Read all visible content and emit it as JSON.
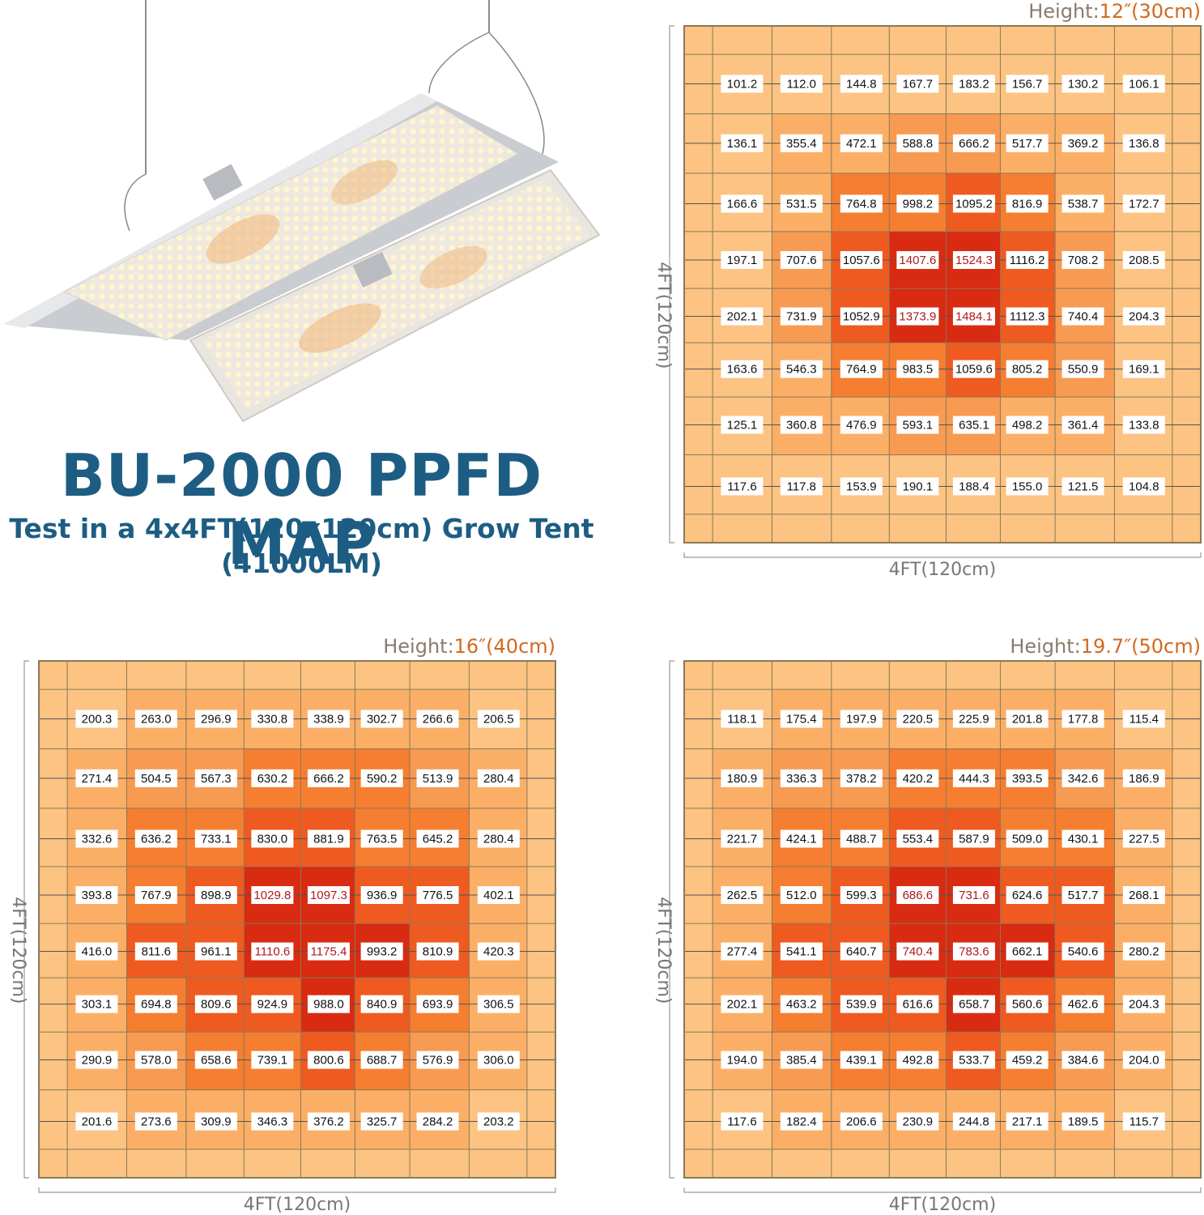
{
  "title": "BU-2000 PPFD MAP",
  "subtitle_line1": "Test in a 4x4FT(120x120cm) Grow Tent",
  "subtitle_line2": "(41000LM)",
  "colors": {
    "title": "#1d5d83",
    "height_label": "#8a7b6e",
    "height_value": "#d2691e",
    "level1": "#fcc382",
    "level2": "#fbaf66",
    "level3": "#f79a52",
    "level4": "#f57e31",
    "level5": "#ef5a20",
    "level6": "#d82b12",
    "peak_text": "#b0191b"
  },
  "chart_data": [
    {
      "type": "heatmap",
      "height_label": "Height:",
      "height_value": "12″(30cm)",
      "xlabel": "4FT(120cm)",
      "ylabel": "4FT(120cm)",
      "values": [
        [
          101.2,
          112.0,
          144.8,
          167.7,
          183.2,
          156.7,
          130.2,
          106.1
        ],
        [
          136.1,
          355.4,
          472.1,
          588.8,
          666.2,
          517.7,
          369.2,
          136.8
        ],
        [
          166.6,
          531.5,
          764.8,
          998.2,
          1095.2,
          816.9,
          538.7,
          172.7
        ],
        [
          197.1,
          707.6,
          1057.6,
          1407.6,
          1524.3,
          1116.2,
          708.2,
          208.5
        ],
        [
          202.1,
          731.9,
          1052.9,
          1373.9,
          1484.1,
          1112.3,
          740.4,
          204.3
        ],
        [
          163.6,
          546.3,
          764.9,
          983.5,
          1059.6,
          805.2,
          550.9,
          169.1
        ],
        [
          125.1,
          360.8,
          476.9,
          593.1,
          635.1,
          498.2,
          361.4,
          133.8
        ],
        [
          117.6,
          117.8,
          153.9,
          190.1,
          188.4,
          155.0,
          121.5,
          104.8
        ]
      ],
      "highlight": [
        [
          3,
          3
        ],
        [
          3,
          4
        ],
        [
          4,
          3
        ],
        [
          4,
          4
        ]
      ]
    },
    {
      "type": "heatmap",
      "height_label": "Height:",
      "height_value": "16″(40cm)",
      "xlabel": "4FT(120cm)",
      "ylabel": "4FT(120cm)",
      "values": [
        [
          200.3,
          263.0,
          296.9,
          330.8,
          338.9,
          302.7,
          266.6,
          206.5
        ],
        [
          271.4,
          504.5,
          567.3,
          630.2,
          666.2,
          590.2,
          513.9,
          280.4
        ],
        [
          332.6,
          636.2,
          733.1,
          830.0,
          881.9,
          763.5,
          645.2,
          280.4
        ],
        [
          393.8,
          767.9,
          898.9,
          1029.8,
          1097.3,
          936.9,
          776.5,
          402.1
        ],
        [
          416.0,
          811.6,
          961.1,
          1110.6,
          1175.4,
          993.2,
          810.9,
          420.3
        ],
        [
          303.1,
          694.8,
          809.6,
          924.9,
          988.0,
          840.9,
          693.9,
          306.5
        ],
        [
          290.9,
          578.0,
          658.6,
          739.1,
          800.6,
          688.7,
          576.9,
          306.0
        ],
        [
          201.6,
          273.6,
          309.9,
          346.3,
          376.2,
          325.7,
          284.2,
          203.2
        ]
      ],
      "highlight": [
        [
          3,
          3
        ],
        [
          3,
          4
        ],
        [
          4,
          3
        ],
        [
          4,
          4
        ]
      ]
    },
    {
      "type": "heatmap",
      "height_label": "Height:",
      "height_value": "19.7″(50cm)",
      "xlabel": "4FT(120cm)",
      "ylabel": "4FT(120cm)",
      "values": [
        [
          118.1,
          175.4,
          197.9,
          220.5,
          225.9,
          201.8,
          177.8,
          115.4
        ],
        [
          180.9,
          336.3,
          378.2,
          420.2,
          444.3,
          393.5,
          342.6,
          186.9
        ],
        [
          221.7,
          424.1,
          488.7,
          553.4,
          587.9,
          509.0,
          430.1,
          227.5
        ],
        [
          262.5,
          512.0,
          599.3,
          686.6,
          731.6,
          624.6,
          517.7,
          268.1
        ],
        [
          277.4,
          541.1,
          640.7,
          740.4,
          783.6,
          662.1,
          540.6,
          280.2
        ],
        [
          202.1,
          463.2,
          539.9,
          616.6,
          658.7,
          560.6,
          462.6,
          204.3
        ],
        [
          194.0,
          385.4,
          439.1,
          492.8,
          533.7,
          459.2,
          384.6,
          204.0
        ],
        [
          117.6,
          182.4,
          206.6,
          230.9,
          244.8,
          217.1,
          189.5,
          115.7
        ]
      ],
      "highlight": [
        [
          3,
          3
        ],
        [
          3,
          4
        ],
        [
          4,
          3
        ],
        [
          4,
          4
        ]
      ]
    }
  ]
}
